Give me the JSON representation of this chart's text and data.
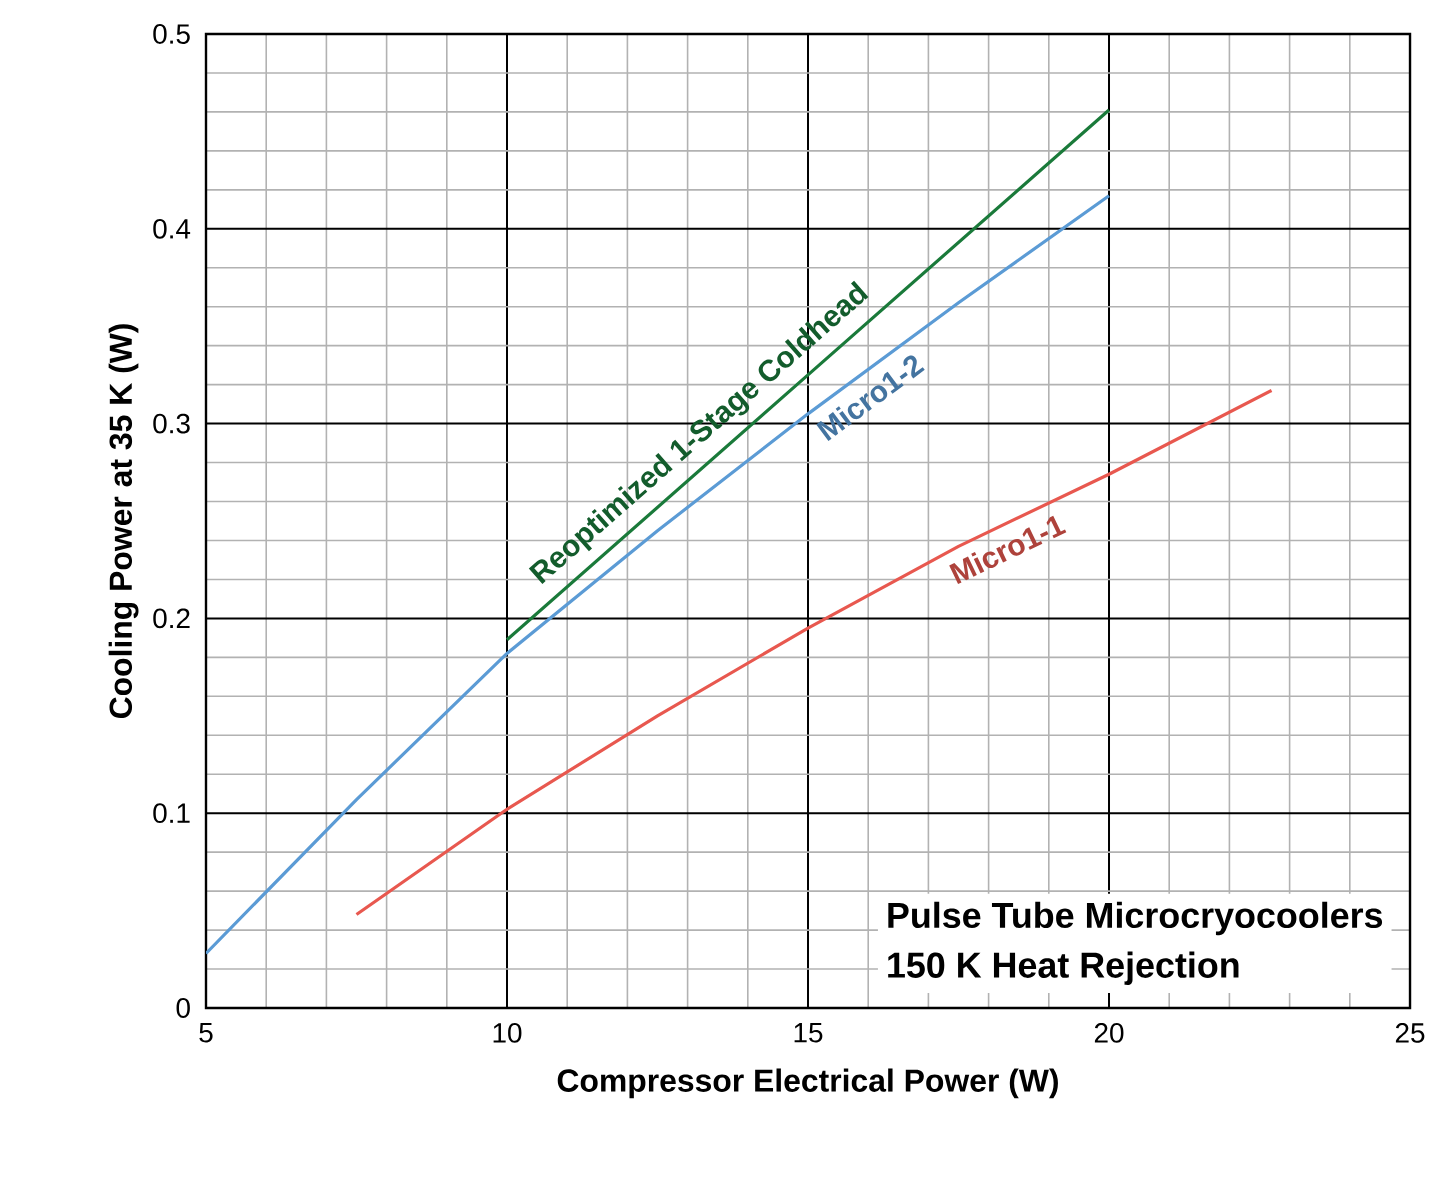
{
  "chart_data": {
    "type": "line",
    "xlabel": "Compressor Electrical Power (W)",
    "ylabel": "Cooling Power at 35 K (W)",
    "xlim": [
      5,
      25
    ],
    "ylim": [
      0,
      0.5
    ],
    "xticks": [
      5,
      10,
      15,
      20,
      25
    ],
    "yticks": [
      0,
      0.1,
      0.2,
      0.3,
      0.4,
      0.5
    ],
    "grid": true,
    "marker": "none",
    "line_style": "solid",
    "series": [
      {
        "name": "Reoptimized 1-Stage Coldhead",
        "color": "#1a7a3a",
        "x": [
          10,
          15,
          20
        ],
        "values": [
          0.189,
          0.325,
          0.461
        ]
      },
      {
        "name": "Micro1-2",
        "color": "#5b9bd5",
        "x": [
          5,
          7.5,
          10,
          12.5,
          15,
          17.5,
          20
        ],
        "values": [
          0.028,
          0.107,
          0.182,
          0.245,
          0.305,
          0.362,
          0.417
        ]
      },
      {
        "name": "Micro1-1",
        "color": "#e8584f",
        "x": [
          7.5,
          10,
          12.5,
          15,
          17.5,
          20,
          22.7
        ],
        "values": [
          0.048,
          0.102,
          0.15,
          0.195,
          0.237,
          0.274,
          0.317
        ]
      }
    ],
    "annotations": [
      "Pulse Tube Microcryocoolers",
      "150 K Heat Rejection"
    ]
  }
}
